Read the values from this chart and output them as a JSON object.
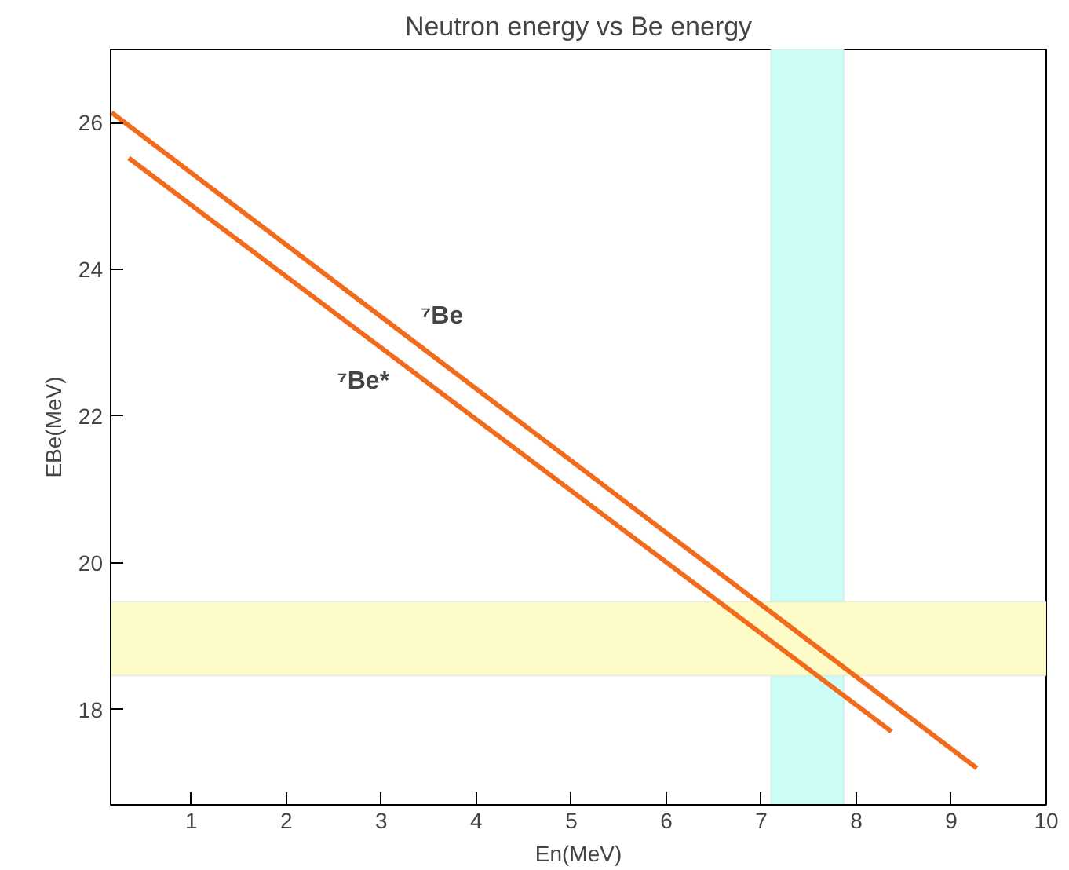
{
  "chart_data": {
    "type": "line",
    "title": "Neutron energy vs Be energy",
    "xlabel": "En(MeV)",
    "ylabel": "EBe(MeV)",
    "xlim": [
      0.15,
      10
    ],
    "ylim": [
      16.7,
      27
    ],
    "xticks": [
      1,
      2,
      3,
      4,
      5,
      6,
      7,
      8,
      9,
      10
    ],
    "yticks": [
      18,
      20,
      22,
      24,
      26
    ],
    "series": [
      {
        "name": "⁷Be",
        "color": "#f26b1d",
        "x": [
          0.16,
          9.27
        ],
        "values": [
          26.14,
          17.2
        ]
      },
      {
        "name": "⁷Be*",
        "color": "#f26b1d",
        "x": [
          0.34,
          8.37
        ],
        "values": [
          25.52,
          17.7
        ]
      }
    ],
    "bands": [
      {
        "axis": "x",
        "from": 7.1,
        "to": 7.87,
        "color": "#ccfdf6"
      },
      {
        "axis": "y",
        "from": 18.46,
        "to": 19.47,
        "color": "#fdfcc8"
      }
    ],
    "grid": false
  }
}
